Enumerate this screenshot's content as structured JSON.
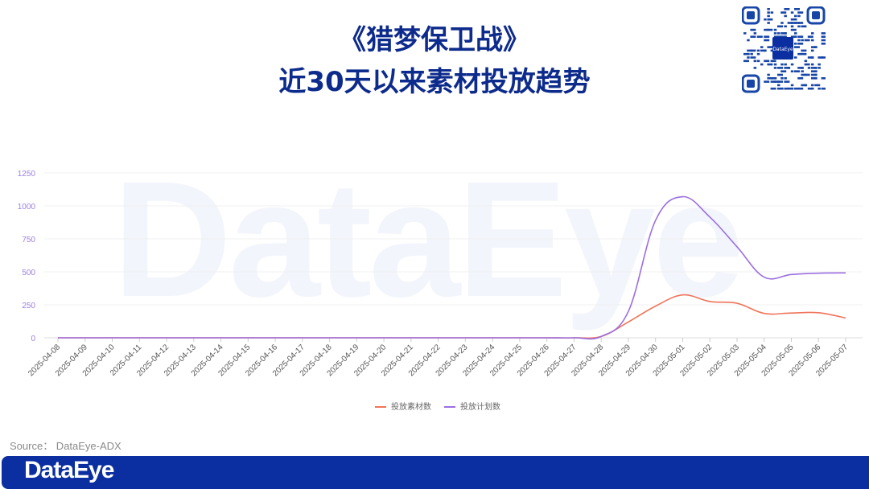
{
  "title_line1": "《猎梦保卫战》",
  "title_line2": "近30天以来素材投放趋势",
  "watermark": "DataEye",
  "qr_logo_text": "DataEye",
  "source": "Source：  DataEye-ADX",
  "footer_logo": "DataEye",
  "chart_data": {
    "type": "line",
    "title": "",
    "xlabel": "",
    "ylabel": "",
    "ylim": [
      0,
      1250
    ],
    "yticks": [
      "0",
      "250",
      "500",
      "750",
      "1000",
      "1250"
    ],
    "grid": true,
    "legend_placement": "bottom",
    "x": [
      "2025-04-08",
      "2025-04-09",
      "2025-04-10",
      "2025-04-11",
      "2025-04-12",
      "2025-04-13",
      "2025-04-14",
      "2025-04-15",
      "2025-04-16",
      "2025-04-17",
      "2025-04-18",
      "2025-04-19",
      "2025-04-20",
      "2025-04-21",
      "2025-04-22",
      "2025-04-23",
      "2025-04-24",
      "2025-04-25",
      "2025-04-26",
      "2025-04-27",
      "2025-04-28",
      "2025-04-29",
      "2025-04-30",
      "2025-05-01",
      "2025-05-02",
      "2025-05-03",
      "2025-05-04",
      "2025-05-05",
      "2025-05-06",
      "2025-05-07"
    ],
    "series": [
      {
        "name": "投放素材数",
        "color": "#f0735a",
        "values": [
          0,
          0,
          0,
          0,
          0,
          0,
          0,
          0,
          0,
          0,
          0,
          0,
          0,
          0,
          0,
          0,
          0,
          0,
          0,
          0,
          10,
          120,
          240,
          325,
          275,
          262,
          185,
          188,
          190,
          150
        ]
      },
      {
        "name": "投放计划数",
        "color": "#9b6fe0",
        "values": [
          0,
          0,
          0,
          0,
          0,
          0,
          0,
          0,
          0,
          0,
          0,
          0,
          0,
          0,
          0,
          0,
          0,
          0,
          0,
          0,
          10,
          200,
          890,
          1070,
          915,
          690,
          460,
          480,
          490,
          492
        ]
      }
    ]
  }
}
